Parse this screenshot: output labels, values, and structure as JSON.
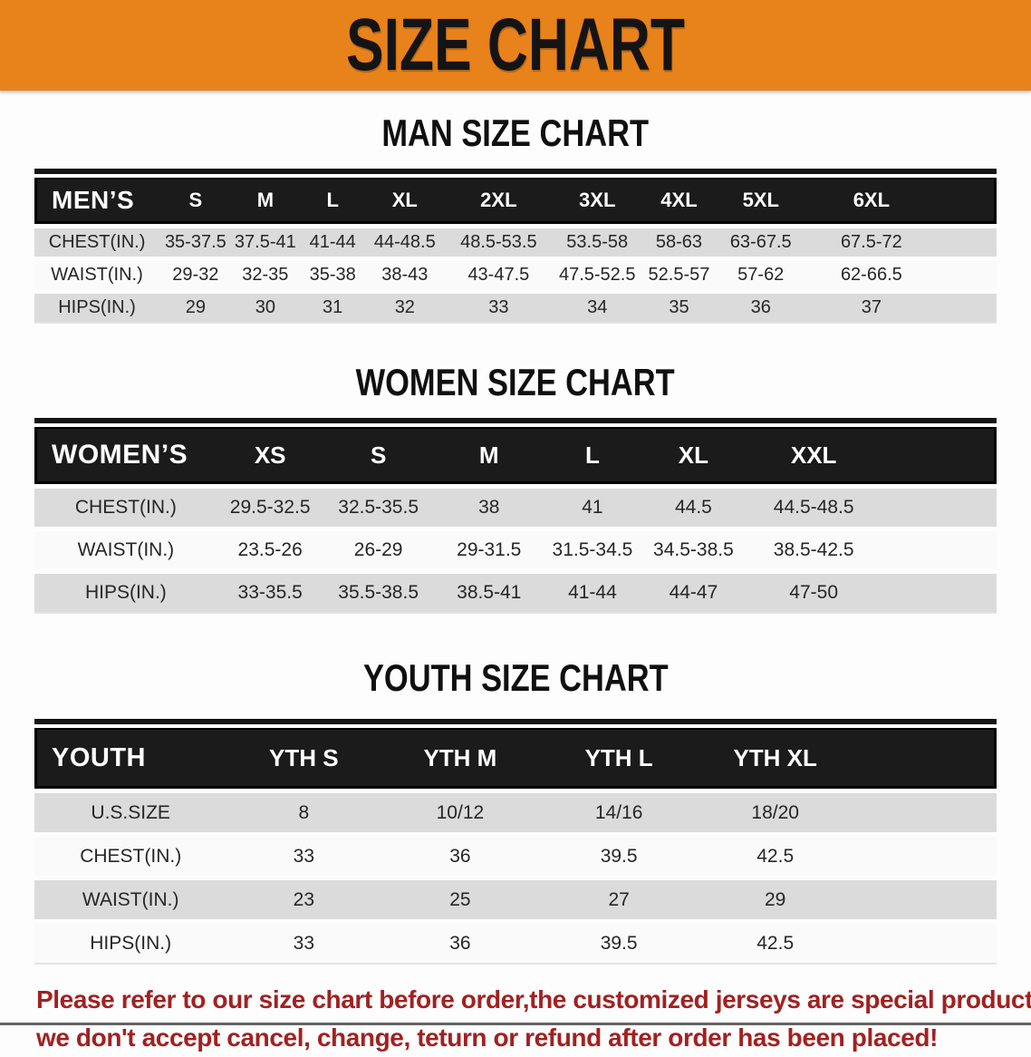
{
  "banner": {
    "title": "SIZE CHART"
  },
  "colors": {
    "banner_bg": "#E8821B",
    "table_header_bg": "#1b1b1b",
    "row_stripe": "#dbdbdb",
    "disclaimer_text": "#A12121"
  },
  "sections": [
    {
      "title": "MAN SIZE CHART",
      "header_label": "MEN’S",
      "columns": [
        "S",
        "M",
        "L",
        "XL",
        "2XL",
        "3XL",
        "4XL",
        "5XL",
        "6XL"
      ],
      "rows": [
        {
          "label": "CHEST(IN.)",
          "values": [
            "35-37.5",
            "37.5-41",
            "41-44",
            "44-48.5",
            "48.5-53.5",
            "53.5-58",
            "58-63",
            "63-67.5",
            "67.5-72"
          ]
        },
        {
          "label": "WAIST(IN.)",
          "values": [
            "29-32",
            "32-35",
            "35-38",
            "38-43",
            "43-47.5",
            "47.5-52.5",
            "52.5-57",
            "57-62",
            "62-66.5"
          ]
        },
        {
          "label": "HIPS(IN.)",
          "values": [
            "29",
            "30",
            "31",
            "32",
            "33",
            "34",
            "35",
            "36",
            "37"
          ]
        }
      ]
    },
    {
      "title": "WOMEN SIZE CHART",
      "header_label": "WOMEN’S",
      "columns": [
        "XS",
        "S",
        "M",
        "L",
        "XL",
        "XXL"
      ],
      "rows": [
        {
          "label": "CHEST(IN.)",
          "values": [
            "29.5-32.5",
            "32.5-35.5",
            "38",
            "41",
            "44.5",
            "44.5-48.5"
          ]
        },
        {
          "label": "WAIST(IN.)",
          "values": [
            "23.5-26",
            "26-29",
            "29-31.5",
            "31.5-34.5",
            "34.5-38.5",
            "38.5-42.5"
          ]
        },
        {
          "label": "HIPS(IN.)",
          "values": [
            "33-35.5",
            "35.5-38.5",
            "38.5-41",
            "41-44",
            "44-47",
            "47-50"
          ]
        }
      ]
    },
    {
      "title": "YOUTH SIZE CHART",
      "header_label": "YOUTH",
      "columns": [
        "YTH S",
        "YTH M",
        "YTH L",
        "YTH XL"
      ],
      "rows": [
        {
          "label": "U.S.SIZE",
          "values": [
            "8",
            "10/12",
            "14/16",
            "18/20"
          ]
        },
        {
          "label": "CHEST(IN.)",
          "values": [
            "33",
            "36",
            "39.5",
            "42.5"
          ]
        },
        {
          "label": "WAIST(IN.)",
          "values": [
            "23",
            "25",
            "27",
            "29"
          ]
        },
        {
          "label": "HIPS(IN.)",
          "values": [
            "33",
            "36",
            "39.5",
            "42.5"
          ]
        }
      ]
    }
  ],
  "disclaimer": {
    "line1": "Please refer to our size chart before order,the customized jerseys are special products,",
    "line2": "we don't accept cancel, change, teturn or refund after order has been placed!"
  }
}
